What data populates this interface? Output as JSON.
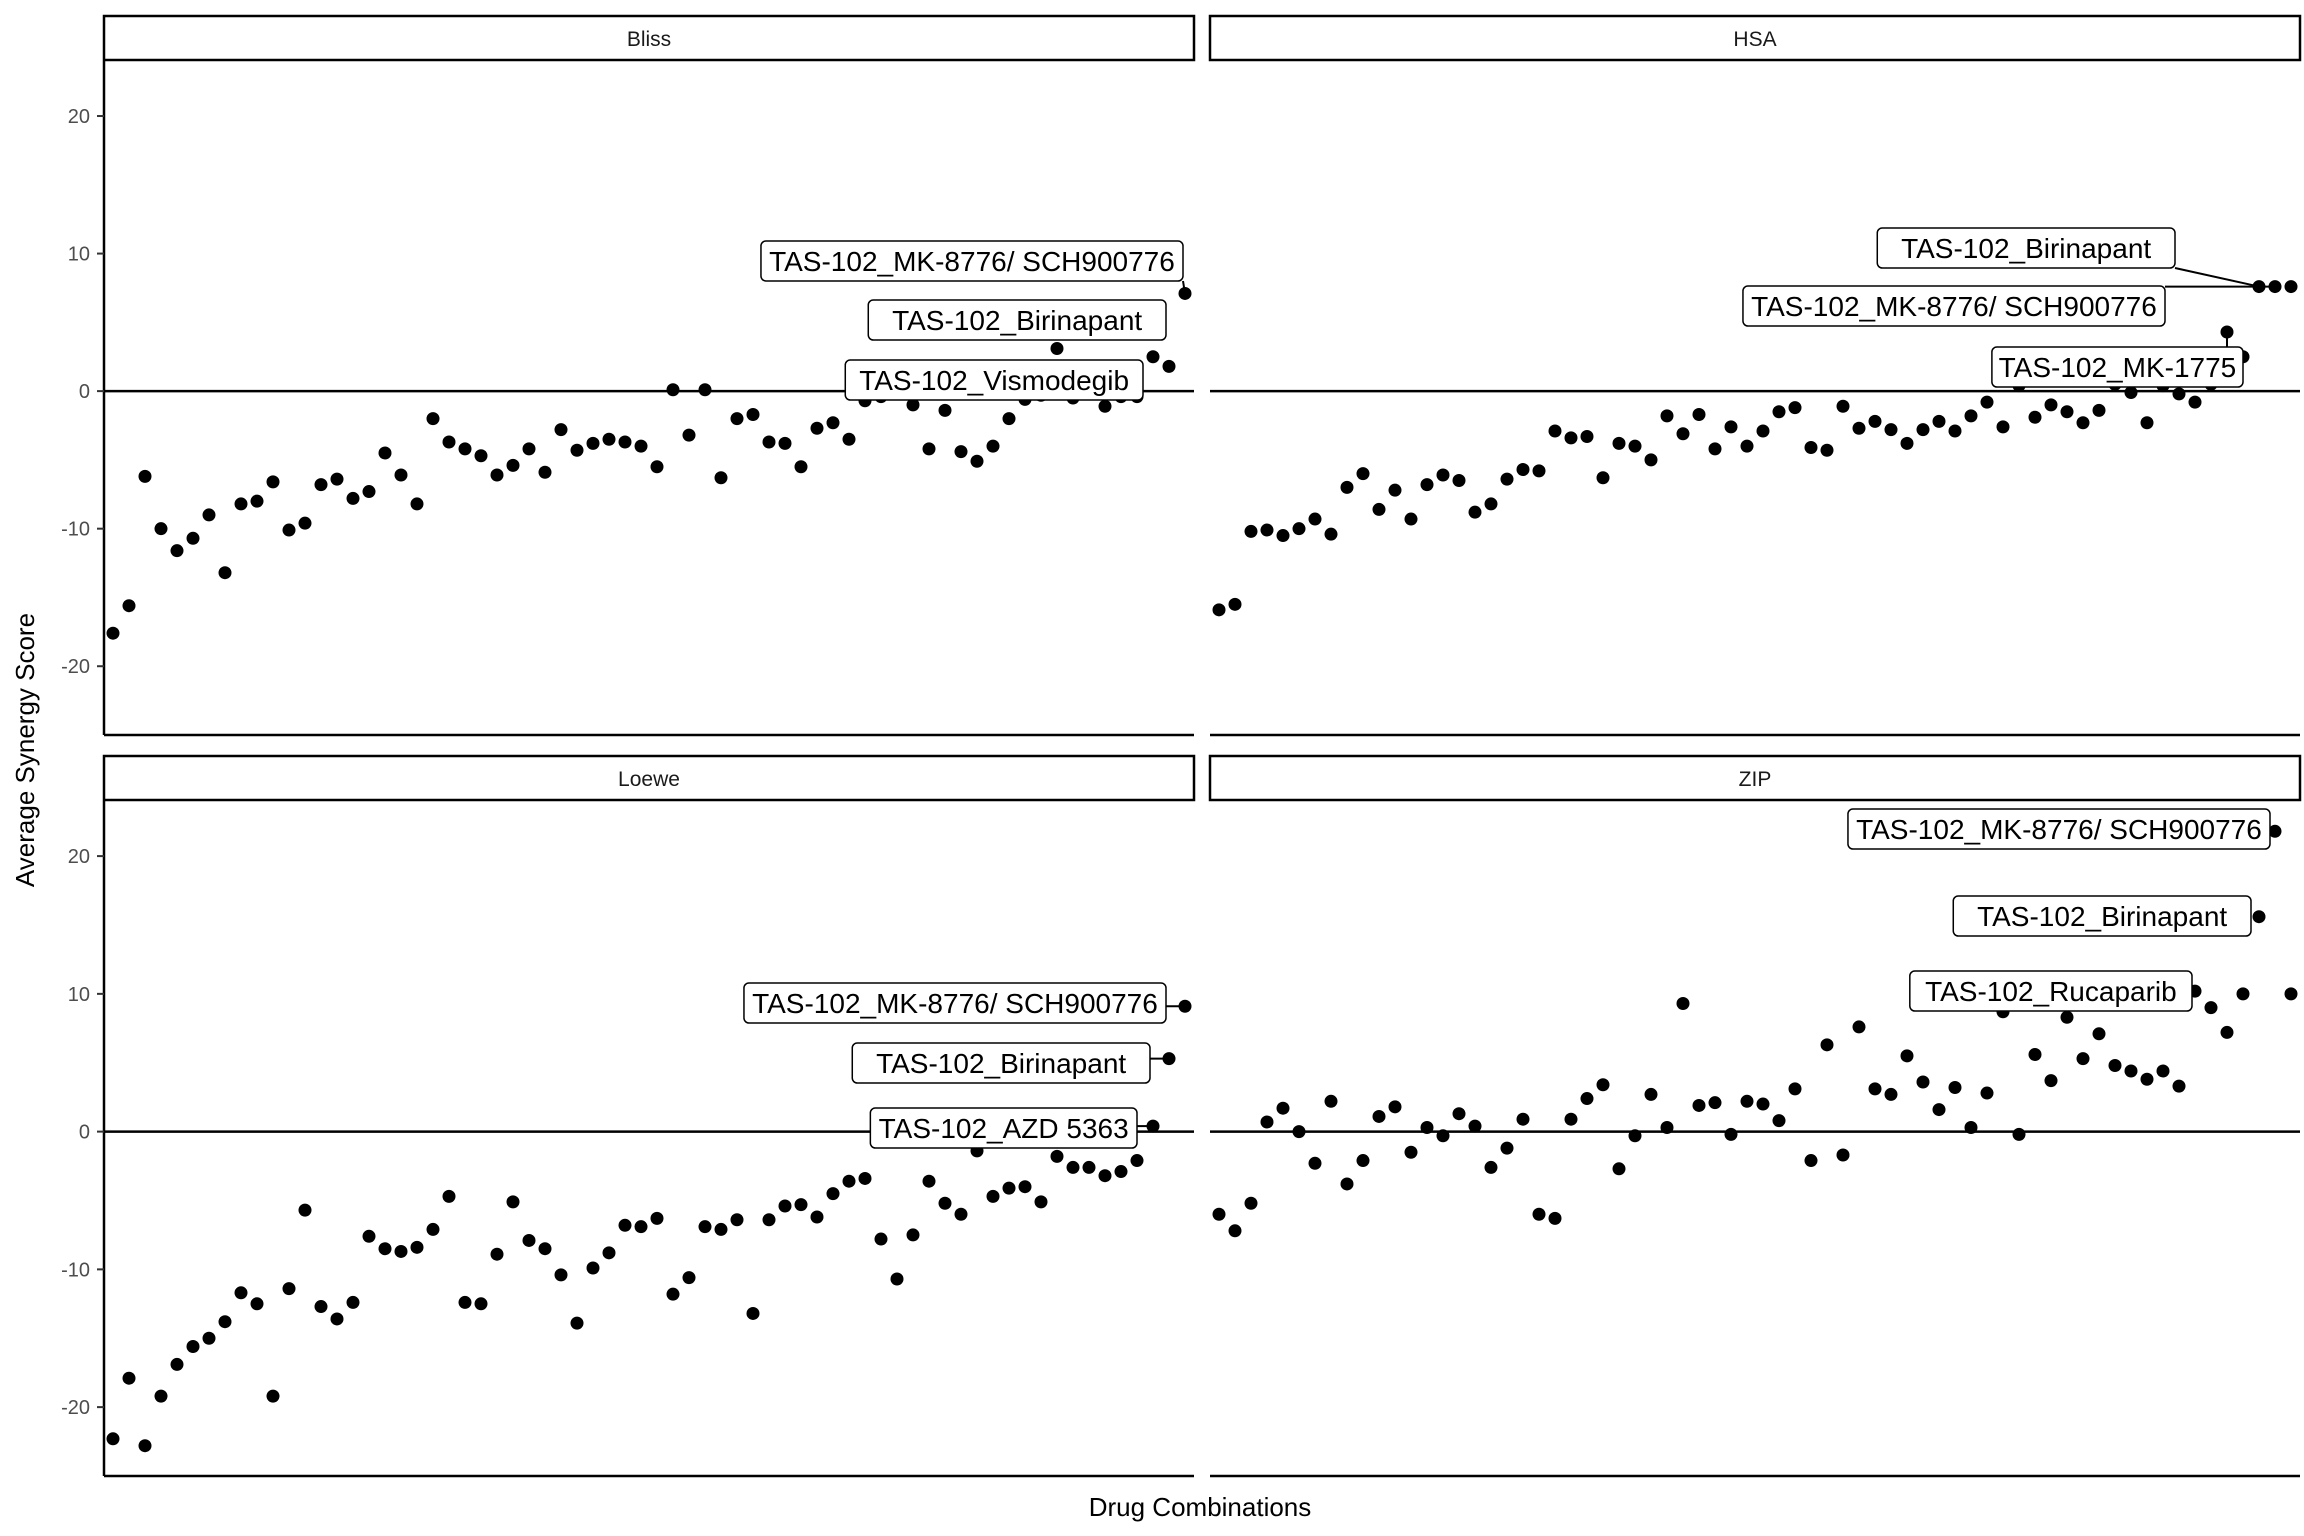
{
  "figure": {
    "ylabel": "Average Synergy Score",
    "xlabel": "Drug Combinations"
  },
  "chart_data": [
    {
      "type": "scatter",
      "facet": "Bliss",
      "ylim": [
        -25,
        24
      ],
      "yticks": [
        -20,
        -10,
        0,
        10,
        20
      ],
      "hline": 0,
      "x": [
        1,
        2,
        3,
        4,
        5,
        6,
        7,
        8,
        9,
        10,
        11,
        12,
        13,
        14,
        15,
        16,
        17,
        18,
        19,
        20,
        21,
        22,
        23,
        24,
        25,
        26,
        27,
        28,
        29,
        30,
        31,
        32,
        33,
        34,
        35,
        36,
        37,
        38,
        39,
        40,
        41,
        42,
        43,
        44,
        45,
        46,
        47,
        48,
        49,
        50,
        51,
        52,
        53,
        54,
        55,
        56,
        57,
        58,
        59,
        60,
        61,
        62,
        63,
        64,
        65,
        66,
        67,
        68
      ],
      "y": [
        -17.6,
        -15.6,
        -6.2,
        -10.0,
        -11.6,
        -10.7,
        -9.0,
        -13.2,
        -8.2,
        -8.0,
        -6.6,
        -10.1,
        -9.6,
        -6.8,
        -6.4,
        -7.8,
        -7.3,
        -4.5,
        -6.1,
        -8.2,
        -2.0,
        -3.7,
        -4.2,
        -4.7,
        -6.1,
        -5.4,
        -4.2,
        -5.9,
        -2.8,
        -4.3,
        -3.8,
        -3.5,
        -3.7,
        -4.0,
        -5.5,
        0.1,
        -3.2,
        0.1,
        -6.3,
        -2.0,
        -1.7,
        -3.7,
        -3.8,
        -5.5,
        -2.7,
        -2.3,
        -3.5,
        -0.7,
        -0.4,
        -0.2,
        -1.0,
        -4.2,
        -1.4,
        -4.4,
        -5.1,
        -4.0,
        -2.0,
        -0.6,
        -0.3,
        3.1,
        -0.5,
        0.4,
        -1.1,
        -0.4,
        -0.4,
        2.5,
        1.8,
        7.1
      ],
      "labels": [
        {
          "text": "TAS-102_MK-8776/ SCH900776",
          "point": 68
        },
        {
          "text": "TAS-102_Birinapant",
          "point": 60
        },
        {
          "text": "TAS-102_Vismodegib",
          "point": 66
        }
      ]
    },
    {
      "type": "scatter",
      "facet": "HSA",
      "ylim": [
        -25,
        24
      ],
      "yticks": [
        -20,
        -10,
        0,
        10,
        20
      ],
      "hline": 0,
      "x": [
        1,
        2,
        3,
        4,
        5,
        6,
        7,
        8,
        9,
        10,
        11,
        12,
        13,
        14,
        15,
        16,
        17,
        18,
        19,
        20,
        21,
        22,
        23,
        24,
        25,
        26,
        27,
        28,
        29,
        30,
        31,
        32,
        33,
        34,
        35,
        36,
        37,
        38,
        39,
        40,
        41,
        42,
        43,
        44,
        45,
        46,
        47,
        48,
        49,
        50,
        51,
        52,
        53,
        54,
        55,
        56,
        57,
        58,
        59,
        60,
        61,
        62,
        63,
        64,
        65,
        66,
        67,
        68
      ],
      "y": [
        -15.9,
        -15.5,
        -10.2,
        -10.1,
        -10.5,
        -10.0,
        -9.3,
        -10.4,
        -7.0,
        -6.0,
        -8.6,
        -7.2,
        -9.3,
        -6.8,
        -6.1,
        -6.5,
        -8.8,
        -8.2,
        -6.4,
        -5.7,
        -5.8,
        -2.9,
        -3.4,
        -3.3,
        -6.3,
        -3.8,
        -4.0,
        -5.0,
        -1.8,
        -3.1,
        -1.7,
        -4.2,
        -2.6,
        -4.0,
        -2.9,
        -1.5,
        -1.2,
        -4.1,
        -4.3,
        -1.1,
        -2.7,
        -2.2,
        -2.8,
        -3.8,
        -2.8,
        -2.2,
        -2.9,
        -1.8,
        -0.8,
        -2.6,
        0.4,
        -1.9,
        -1.0,
        -1.5,
        -2.3,
        -1.4,
        0.5,
        -0.1,
        -2.3,
        0.4,
        -0.2,
        -0.8,
        0.5,
        4.3,
        2.5,
        7.6,
        7.6,
        7.6
      ],
      "labels": [
        {
          "text": "TAS-102_Birinapant",
          "point": 66
        },
        {
          "text": "TAS-102_MK-8776/ SCH900776",
          "point": 67
        },
        {
          "text": "TAS-102_MK-1775",
          "point": 64
        }
      ]
    },
    {
      "type": "scatter",
      "facet": "Loewe",
      "ylim": [
        -25,
        24
      ],
      "yticks": [
        -20,
        -10,
        0,
        10,
        20
      ],
      "hline": 0,
      "x": [
        1,
        2,
        3,
        4,
        5,
        6,
        7,
        8,
        9,
        10,
        11,
        12,
        13,
        14,
        15,
        16,
        17,
        18,
        19,
        20,
        21,
        22,
        23,
        24,
        25,
        26,
        27,
        28,
        29,
        30,
        31,
        32,
        33,
        34,
        35,
        36,
        37,
        38,
        39,
        40,
        41,
        42,
        43,
        44,
        45,
        46,
        47,
        48,
        49,
        50,
        51,
        52,
        53,
        54,
        55,
        56,
        57,
        58,
        59,
        60,
        61,
        62,
        63,
        64,
        65,
        66,
        67,
        68
      ],
      "y": [
        -22.3,
        -17.9,
        -22.8,
        -19.2,
        -16.9,
        -15.6,
        -15.0,
        -13.8,
        -11.7,
        -12.5,
        -19.2,
        -11.4,
        -5.7,
        -12.7,
        -13.6,
        -12.4,
        -7.6,
        -8.5,
        -8.7,
        -8.4,
        -7.1,
        -4.7,
        -12.4,
        -12.5,
        -8.9,
        -5.1,
        -7.9,
        -8.5,
        -10.4,
        -13.9,
        -9.9,
        -8.8,
        -6.8,
        -6.9,
        -6.3,
        -11.8,
        -10.6,
        -6.9,
        -7.1,
        -6.4,
        -13.2,
        -6.4,
        -5.4,
        -5.3,
        -6.2,
        -4.5,
        -3.6,
        -3.4,
        -7.8,
        -10.7,
        -7.5,
        -3.6,
        -5.2,
        -6.0,
        -1.4,
        -4.7,
        -4.1,
        -4.0,
        -5.1,
        -1.8,
        -2.6,
        -2.6,
        -3.2,
        -2.9,
        -2.1,
        0.4,
        5.3,
        9.1
      ],
      "labels": [
        {
          "text": "TAS-102_MK-8776/ SCH900776",
          "point": 68
        },
        {
          "text": "TAS-102_Birinapant",
          "point": 67
        },
        {
          "text": "TAS-102_AZD 5363",
          "point": 66
        }
      ]
    },
    {
      "type": "scatter",
      "facet": "ZIP",
      "ylim": [
        -25,
        24
      ],
      "yticks": [
        -20,
        -10,
        0,
        10,
        20
      ],
      "hline": 0,
      "x": [
        1,
        2,
        3,
        4,
        5,
        6,
        7,
        8,
        9,
        10,
        11,
        12,
        13,
        14,
        15,
        16,
        17,
        18,
        19,
        20,
        21,
        22,
        23,
        24,
        25,
        26,
        27,
        28,
        29,
        30,
        31,
        32,
        33,
        34,
        35,
        36,
        37,
        38,
        39,
        40,
        41,
        42,
        43,
        44,
        45,
        46,
        47,
        48,
        49,
        50,
        51,
        52,
        53,
        54,
        55,
        56,
        57,
        58,
        59,
        60,
        61,
        62,
        63,
        64,
        65,
        66,
        67,
        68
      ],
      "y": [
        -6.0,
        -7.2,
        -5.2,
        0.7,
        1.7,
        0.0,
        -2.3,
        2.2,
        -3.8,
        -2.1,
        1.1,
        1.8,
        -1.5,
        0.3,
        -0.3,
        1.3,
        0.4,
        -2.6,
        -1.2,
        0.9,
        -6.0,
        -6.3,
        0.9,
        2.4,
        3.4,
        -2.7,
        -0.3,
        2.7,
        0.3,
        9.3,
        1.9,
        2.1,
        -0.2,
        2.2,
        2.0,
        0.8,
        3.1,
        -2.1,
        6.3,
        -1.7,
        7.6,
        3.1,
        2.7,
        5.5,
        3.6,
        1.6,
        3.2,
        0.3,
        2.8,
        8.7,
        -0.2,
        5.6,
        3.7,
        8.3,
        5.3,
        7.1,
        4.8,
        4.4,
        3.8,
        4.4,
        3.3,
        10.2,
        9.0,
        7.2,
        10.0,
        15.6,
        21.8,
        10.0
      ],
      "labels": [
        {
          "text": "TAS-102_MK-8776/ SCH900776",
          "point": 67
        },
        {
          "text": "TAS-102_Birinapant",
          "point": 66
        },
        {
          "text": "TAS-102_Rucaparib",
          "point": 62
        }
      ]
    }
  ]
}
